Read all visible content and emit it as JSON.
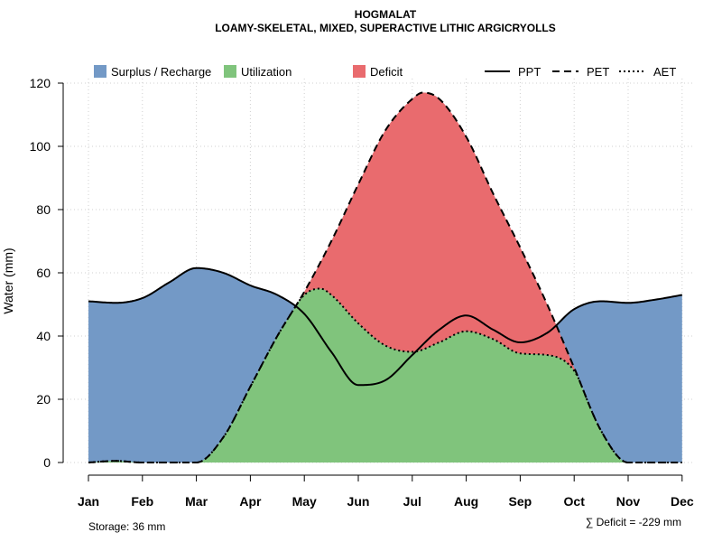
{
  "chart_data": {
    "type": "area",
    "title": "HOGMALAT",
    "subtitle": "LOAMY-SKELETAL, MIXED, SUPERACTIVE LITHIC ARGICRYOLLS",
    "xlabel": "",
    "ylabel": "Water (mm)",
    "ylim": [
      0,
      120
    ],
    "yticks": [
      0,
      20,
      40,
      60,
      80,
      100,
      120
    ],
    "categories": [
      "Jan",
      "Feb",
      "Mar",
      "Apr",
      "May",
      "Jun",
      "Jul",
      "Aug",
      "Sep",
      "Oct",
      "Nov",
      "Dec"
    ],
    "grid": true,
    "legend_position": "top",
    "legend": {
      "surplus": "Surplus / Recharge",
      "utilization": "Utilization",
      "deficit": "Deficit",
      "ppt": "PPT",
      "pet": "PET",
      "aet": "AET"
    },
    "colors": {
      "surplus": "#7399c6",
      "utilization": "#80c47c",
      "deficit": "#e96b6e",
      "line": "#000000",
      "grid": "#d0d0d0"
    },
    "series": [
      {
        "name": "PPT",
        "style": "solid",
        "x": [
          1,
          1.5,
          2,
          2.5,
          3,
          3.5,
          4,
          4.5,
          5,
          5.5,
          6,
          6.5,
          7,
          7.5,
          8,
          8.5,
          9,
          9.5,
          10,
          10.5,
          11,
          11.5,
          12
        ],
        "values": [
          51,
          50.5,
          52,
          57,
          61.5,
          60,
          56,
          53,
          47,
          35,
          24.5,
          26,
          34,
          42,
          46.5,
          42,
          38,
          41,
          48.5,
          51,
          50.5,
          51.5,
          53
        ]
      },
      {
        "name": "PET",
        "style": "dashed",
        "x": [
          1,
          1.5,
          2,
          2.5,
          3,
          3.5,
          4,
          4.5,
          5,
          5.5,
          6,
          6.5,
          7,
          7.2,
          7.5,
          8,
          8.5,
          9,
          9.5,
          10,
          10.5,
          11,
          11.5,
          12
        ],
        "values": [
          0,
          0.5,
          0,
          0,
          0,
          8,
          24,
          40,
          54,
          70,
          88,
          105,
          115,
          117,
          115,
          103,
          85,
          68,
          50,
          30,
          10,
          0,
          0,
          0
        ]
      },
      {
        "name": "AET",
        "style": "dotted",
        "x": [
          1,
          1.5,
          2,
          2.5,
          3,
          3.5,
          4,
          4.5,
          5,
          5.3,
          5.5,
          6,
          6.5,
          7,
          7.5,
          8,
          8.5,
          9,
          9.5,
          10,
          10.5,
          11,
          11.5,
          12
        ],
        "values": [
          0,
          0.5,
          0,
          0,
          0,
          8,
          24,
          40,
          53,
          55,
          53,
          44,
          37,
          35,
          38,
          41.5,
          39,
          34.5,
          34,
          29,
          10,
          0,
          0,
          0
        ]
      }
    ],
    "annotations": {
      "storage": "Storage: 36 mm",
      "deficit_sum": "∑ Deficit = -229 mm"
    }
  }
}
